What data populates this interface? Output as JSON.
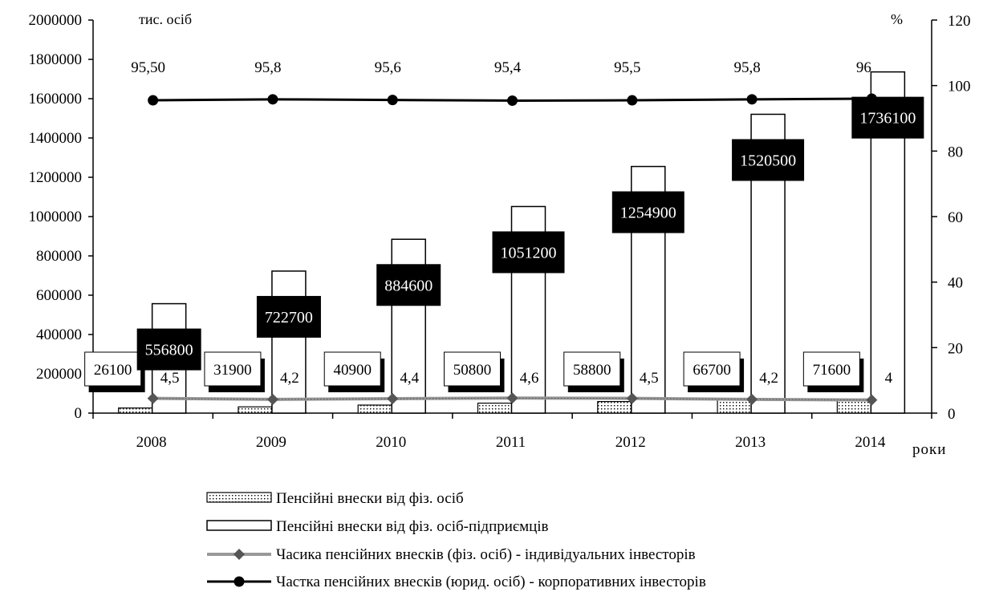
{
  "chart_data": {
    "type": "bar",
    "categories": [
      "2008",
      "2009",
      "2010",
      "2011",
      "2012",
      "2013",
      "2014"
    ],
    "xlabel": "роки",
    "ylabel_left": "тис. осіб",
    "ylabel_right": "%",
    "ylim_left": [
      0,
      2000000
    ],
    "ylim_right": [
      0,
      120
    ],
    "yticks_left": [
      "0",
      "200000",
      "400000",
      "600000",
      "800000",
      "1000000",
      "1200000",
      "1400000",
      "1600000",
      "1800000",
      "2000000"
    ],
    "yticks_right": [
      "0",
      "20",
      "40",
      "60",
      "80",
      "100",
      "120"
    ],
    "grid": false,
    "legend_position": "bottom",
    "series": [
      {
        "name": "Пенсійні внески від фіз. осіб",
        "kind": "bar",
        "axis": "left",
        "pattern": "dotted",
        "values": [
          26100,
          31900,
          40900,
          50800,
          58800,
          66700,
          71600
        ],
        "labels": [
          "26100",
          "31900",
          "40900",
          "50800",
          "58800",
          "66700",
          "71600"
        ]
      },
      {
        "name": "Пенсійні внески від фіз. осіб-підприємців",
        "kind": "bar",
        "axis": "left",
        "pattern": "empty",
        "values": [
          556800,
          722700,
          884600,
          1051200,
          1254900,
          1520500,
          1736100
        ],
        "labels": [
          "556800",
          "722700",
          "884600",
          "1051200",
          "1254900",
          "1520500",
          "1736100"
        ]
      },
      {
        "name": "Часика пенсійних внесків (фіз. осіб) - індивідуальних інвесторів",
        "kind": "line",
        "axis": "right",
        "marker": "diamond",
        "color": "#999999",
        "values": [
          4.5,
          4.2,
          4.4,
          4.6,
          4.5,
          4.2,
          4
        ],
        "labels": [
          "4,5",
          "4,2",
          "4,4",
          "4,6",
          "4,5",
          "4,2",
          "4"
        ]
      },
      {
        "name": "Частка пенсійних внесків (юрид. осіб) - корпоративних інвесторів",
        "kind": "line",
        "axis": "right",
        "marker": "circle",
        "color": "#000000",
        "values": [
          95.5,
          95.8,
          95.6,
          95.4,
          95.5,
          95.8,
          96
        ],
        "labels": [
          "95,50",
          "95,8",
          "95,6",
          "95,4",
          "95,5",
          "95,8",
          "96"
        ]
      }
    ]
  }
}
